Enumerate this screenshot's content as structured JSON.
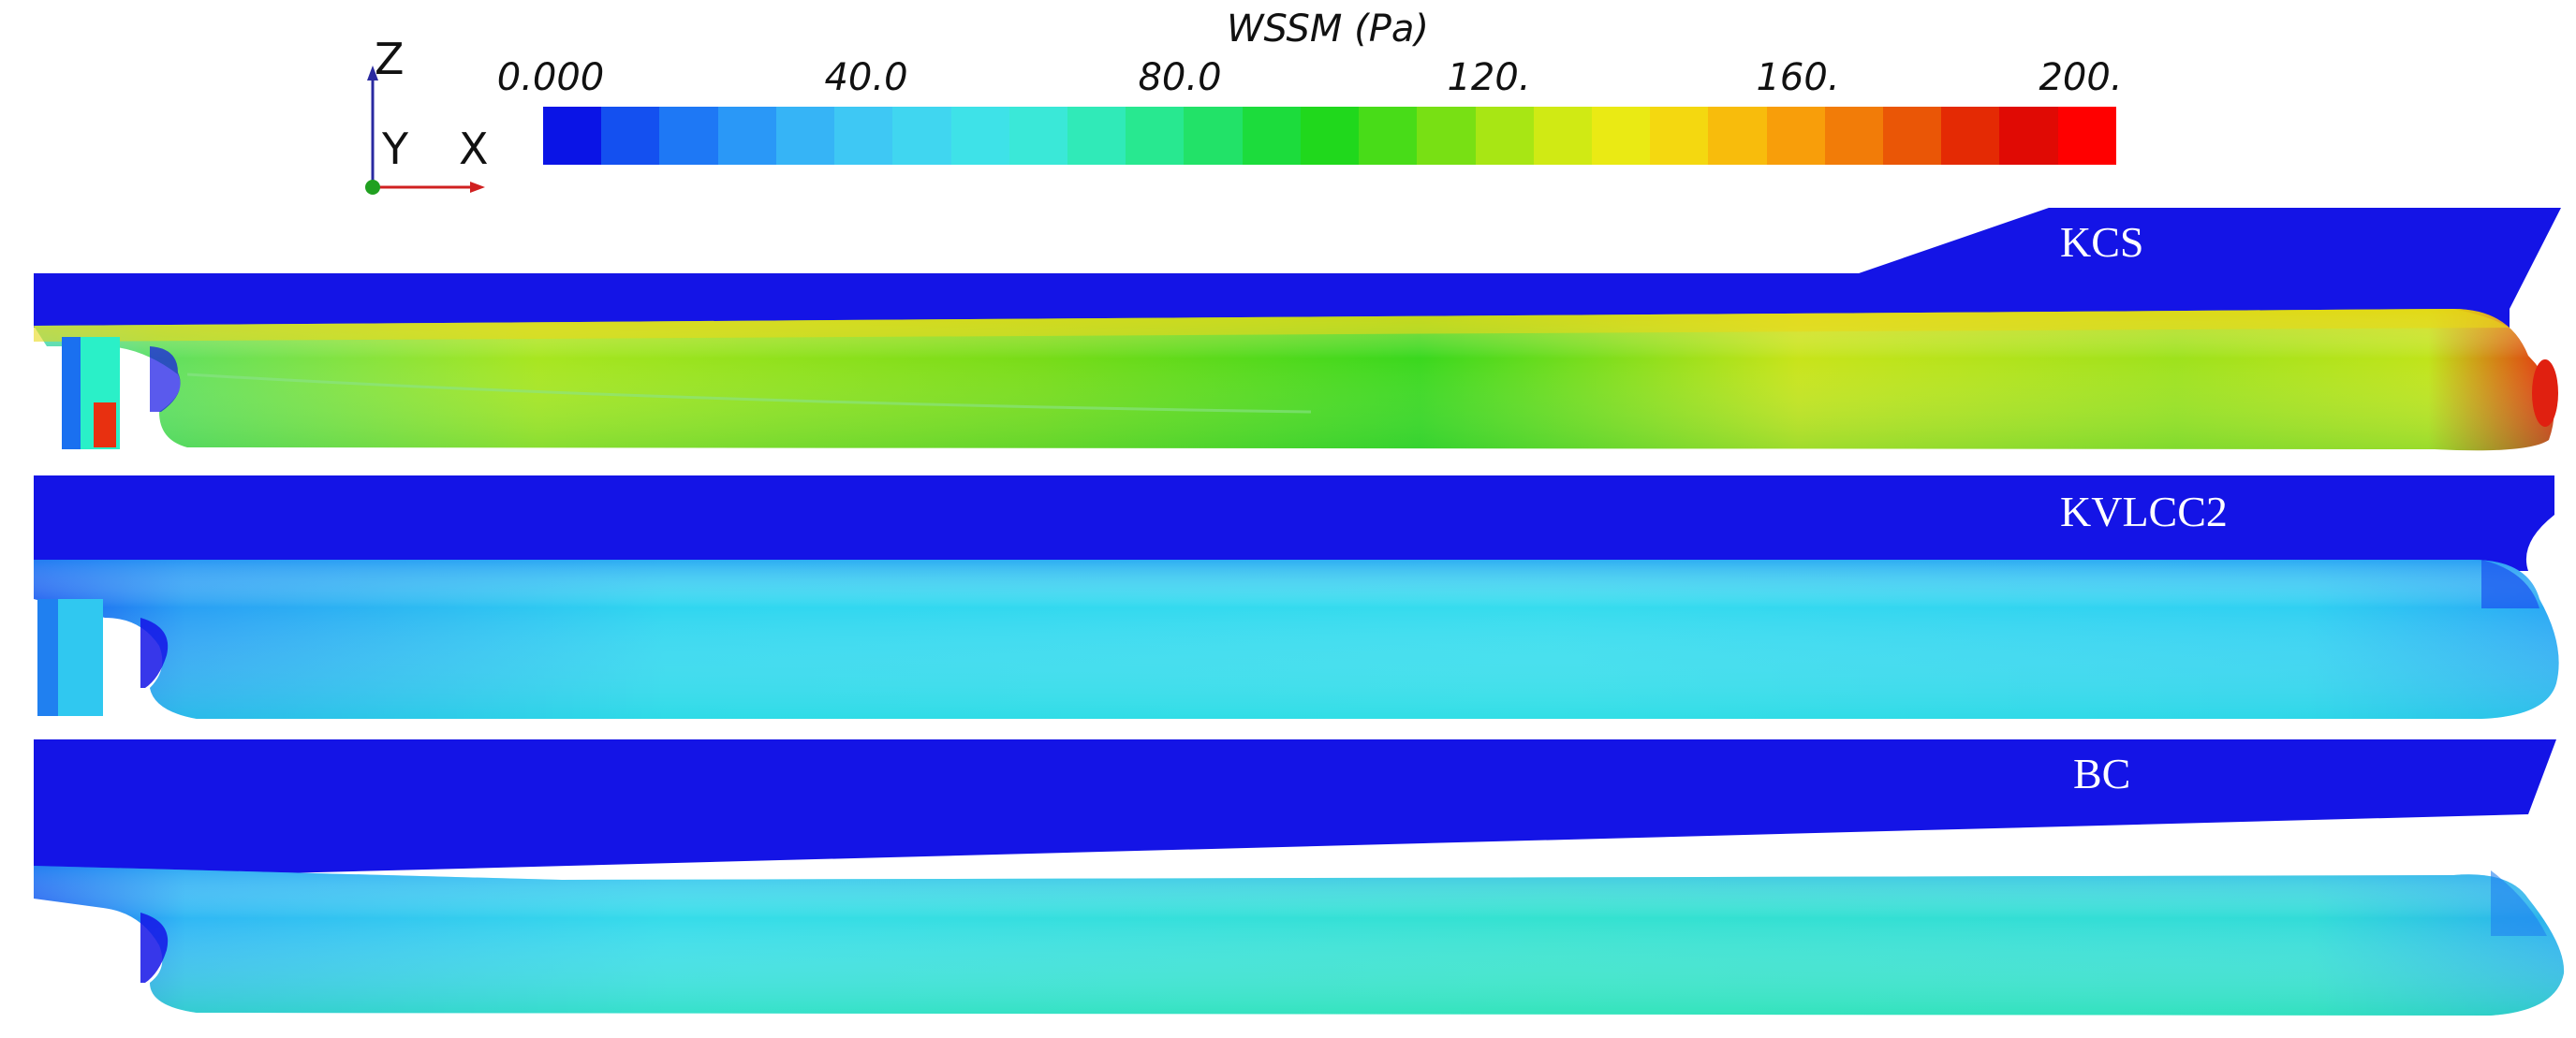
{
  "legend": {
    "title": "WSSM (Pa)",
    "tick_labels": [
      "0.000",
      "40.0",
      "80.0",
      "120.",
      "160.",
      "200."
    ],
    "colors": [
      "#0a14e6",
      "#1450f0",
      "#1e78f5",
      "#2a98f7",
      "#36b4f6",
      "#3ec8f4",
      "#40d6f0",
      "#3ee2e8",
      "#3ae8d8",
      "#30eab8",
      "#28e890",
      "#22e268",
      "#1cdc3c",
      "#20d81c",
      "#48dc18",
      "#78e014",
      "#a8e614",
      "#d0ea14",
      "#eaea14",
      "#f4d810",
      "#f8bc0c",
      "#f89e0a",
      "#f27c08",
      "#ea5606",
      "#e42a04",
      "#e00a04",
      "#ff0000"
    ]
  },
  "axes_triad": {
    "z_label": "Z",
    "y_label": "Y",
    "x_label": "X"
  },
  "hulls": [
    {
      "label": "KCS"
    },
    {
      "label": "KVLCC2"
    },
    {
      "label": "BC"
    }
  ]
}
